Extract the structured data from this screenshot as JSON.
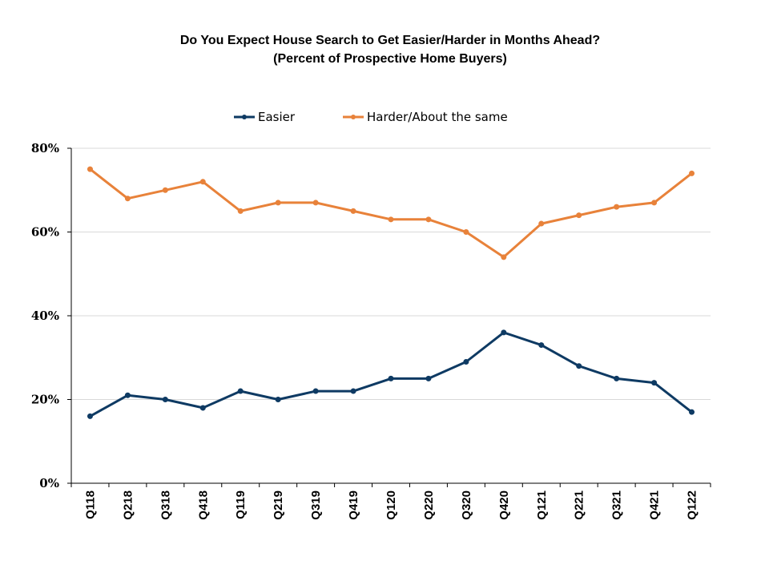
{
  "chart_data": {
    "type": "line",
    "title": "Do You Expect House Search to Get Easier/Harder in Months Ahead?",
    "subtitle": "(Percent of Prospective Home Buyers)",
    "categories": [
      "Q118",
      "Q218",
      "Q318",
      "Q418",
      "Q119",
      "Q219",
      "Q319",
      "Q419",
      "Q120",
      "Q220",
      "Q320",
      "Q420",
      "Q121",
      "Q221",
      "Q321",
      "Q421",
      "Q122"
    ],
    "series": [
      {
        "name": "Easier",
        "color": "#0e3a63",
        "values": [
          16,
          21,
          20,
          18,
          22,
          20,
          22,
          22,
          25,
          25,
          29,
          36,
          33,
          28,
          25,
          24,
          17
        ]
      },
      {
        "name": "Harder/About the same",
        "color": "#e8823a",
        "values": [
          75,
          68,
          70,
          72,
          65,
          67,
          67,
          65,
          63,
          63,
          60,
          54,
          62,
          64,
          66,
          67,
          74
        ]
      }
    ],
    "ylim": [
      0,
      80
    ],
    "yticks": [
      0,
      20,
      40,
      60,
      80
    ],
    "ytick_labels": [
      "0%",
      "20%",
      "40%",
      "60%",
      "80%"
    ],
    "xlabel": "",
    "ylabel": "",
    "grid": true,
    "legend": "top-center"
  }
}
